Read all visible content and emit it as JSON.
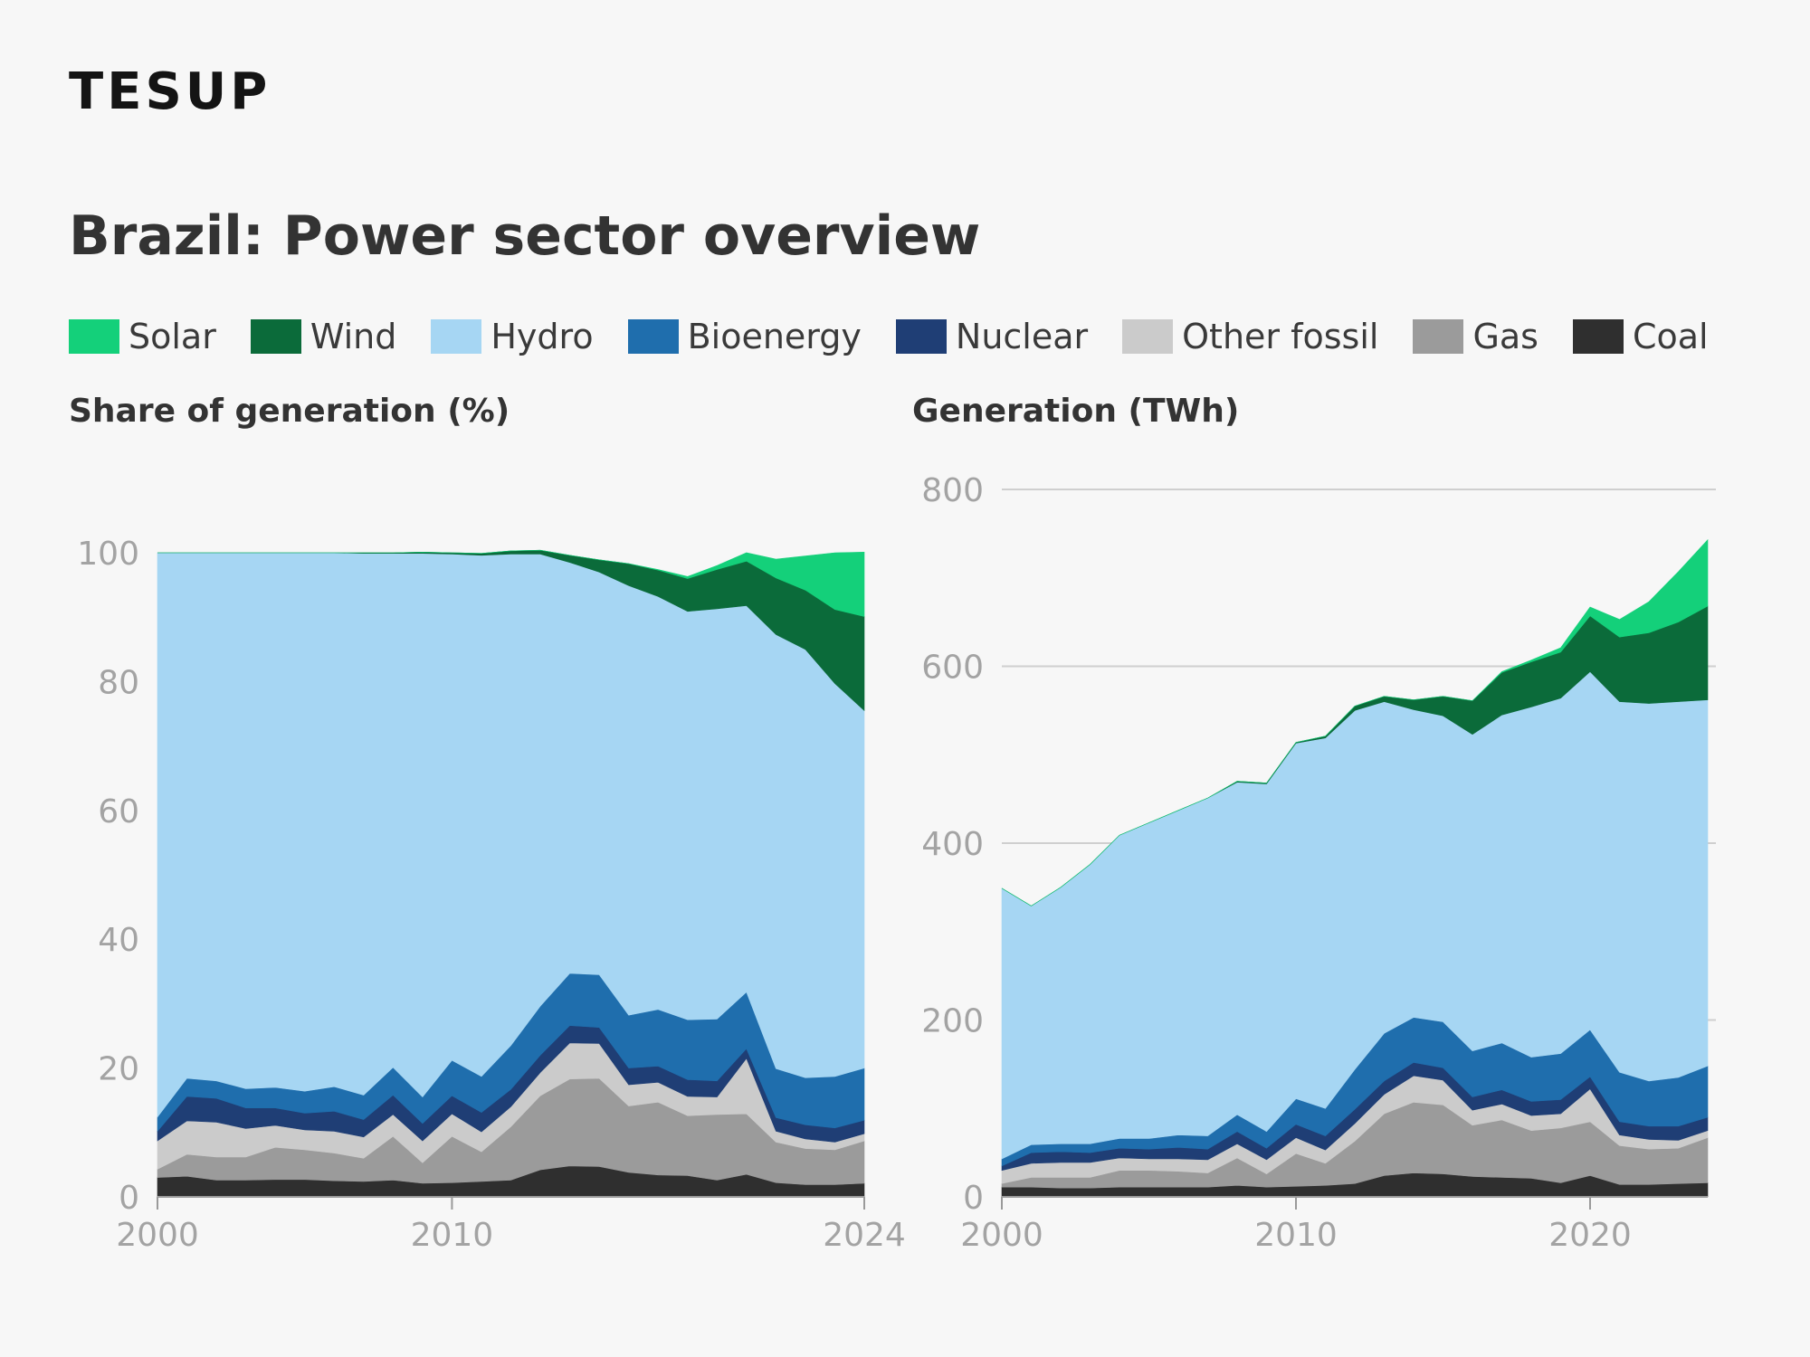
{
  "brand": {
    "logo_text": "TESUP"
  },
  "title": "Brazil: Power sector overview",
  "colors": {
    "Solar": "#14d07a",
    "Wind": "#0b6b3a",
    "Hydro": "#a6d6f3",
    "Bioenergy": "#1f6ead",
    "Nuclear": "#1f3e75",
    "Other fossil": "#cbcbcb",
    "Gas": "#9b9b9b",
    "Coal": "#2f2f2f"
  },
  "legend": [
    "Solar",
    "Wind",
    "Hydro",
    "Bioenergy",
    "Nuclear",
    "Other fossil",
    "Gas",
    "Coal"
  ],
  "chart_data": [
    {
      "type": "area",
      "stacked": true,
      "title": "Share of generation (%)",
      "xlabel": "",
      "ylabel": "",
      "xlim": [
        2000,
        2024
      ],
      "ylim": [
        0,
        100
      ],
      "yticks": [
        0,
        20,
        40,
        60,
        80,
        100
      ],
      "xticks": [
        2000,
        2010,
        2024
      ],
      "grid": false,
      "x": [
        2000,
        2001,
        2002,
        2003,
        2004,
        2005,
        2006,
        2007,
        2008,
        2009,
        2010,
        2011,
        2012,
        2013,
        2014,
        2015,
        2016,
        2017,
        2018,
        2019,
        2020,
        2021,
        2022,
        2023,
        2024
      ],
      "series": [
        {
          "name": "Coal",
          "values": [
            3,
            3.2,
            2.6,
            2.6,
            2.7,
            2.7,
            2.5,
            2.4,
            2.6,
            2.1,
            2.2,
            2.4,
            2.6,
            4.2,
            4.8,
            4.7,
            3.8,
            3.4,
            3.3,
            2.6,
            3.5,
            2.2,
            1.9,
            1.9,
            2.1
          ]
        },
        {
          "name": "Gas",
          "values": [
            1.3,
            3.4,
            3.6,
            3.6,
            5,
            4.6,
            4.3,
            3.6,
            6.8,
            3.2,
            7.2,
            4.6,
            8.3,
            11.5,
            13.5,
            13.7,
            10.3,
            11.3,
            9.3,
            10.2,
            9.4,
            6.3,
            5.6,
            5.4,
            6.6
          ]
        },
        {
          "name": "Other fossil",
          "values": [
            4.4,
            5.2,
            5.4,
            4.4,
            3.4,
            3.1,
            3.4,
            3.3,
            3.4,
            3.4,
            3.5,
            3.1,
            3.1,
            3.6,
            5.6,
            5.4,
            3.3,
            3.1,
            3,
            2.7,
            8.6,
            1.7,
            1.5,
            1.2,
            1.1
          ]
        },
        {
          "name": "Nuclear",
          "values": [
            1.5,
            3.8,
            3.7,
            3.2,
            2.7,
            2.6,
            3.1,
            2.7,
            3,
            2.7,
            2.8,
            3,
            2.7,
            2.7,
            2.7,
            2.5,
            2.6,
            2.5,
            2.6,
            2.5,
            1.5,
            2.1,
            2.2,
            2.2,
            2.1
          ]
        },
        {
          "name": "Bioenergy",
          "values": [
            2.2,
            2.8,
            2.7,
            3,
            3.2,
            3.4,
            3.8,
            3.8,
            4.3,
            4.1,
            5.5,
            5.6,
            6.8,
            7.6,
            8.1,
            8.2,
            8.2,
            8.8,
            9.3,
            9.6,
            8.8,
            7.6,
            7.3,
            8,
            8.1
          ]
        },
        {
          "name": "Hydro",
          "values": [
            87.6,
            81.6,
            82,
            83.2,
            83,
            83.6,
            82.9,
            84.1,
            79.8,
            84.4,
            78.6,
            80.9,
            76.3,
            70.2,
            63.8,
            62.5,
            66.7,
            64.1,
            63.4,
            63.7,
            60,
            67.4,
            66.5,
            61,
            55.5
          ]
        },
        {
          "name": "Wind",
          "values": [
            0,
            0,
            0,
            0,
            0,
            0,
            0,
            0.1,
            0.1,
            0.2,
            0.2,
            0.3,
            0.5,
            0.6,
            1.1,
            1.9,
            3.4,
            4.1,
            5.1,
            6.1,
            6.9,
            8.8,
            9.2,
            11.5,
            14.6
          ]
        },
        {
          "name": "Solar",
          "values": [
            0,
            0,
            0,
            0,
            0,
            0,
            0,
            0,
            0,
            0,
            0,
            0,
            0,
            0,
            0,
            0,
            0,
            0.1,
            0.3,
            0.6,
            1.3,
            2.9,
            5.3,
            8.8,
            10
          ]
        }
      ]
    },
    {
      "type": "area",
      "stacked": true,
      "title": "Generation (TWh)",
      "xlabel": "",
      "ylabel": "",
      "xlim": [
        2000,
        2024
      ],
      "ylim": [
        0,
        800
      ],
      "yticks": [
        0,
        200,
        400,
        600,
        800
      ],
      "xticks": [
        2000,
        2010,
        2020
      ],
      "grid": true,
      "x": [
        2000,
        2001,
        2002,
        2003,
        2004,
        2005,
        2006,
        2007,
        2008,
        2009,
        2010,
        2011,
        2012,
        2013,
        2014,
        2015,
        2016,
        2017,
        2018,
        2019,
        2020,
        2021,
        2022,
        2023,
        2024
      ],
      "series": [
        {
          "name": "Coal",
          "values": [
            11,
            11,
            10,
            10,
            11,
            11,
            11,
            11,
            13,
            11,
            12,
            13,
            15,
            24,
            27,
            26,
            23,
            22,
            21,
            16,
            24,
            14,
            14,
            15,
            16
          ]
        },
        {
          "name": "Gas",
          "values": [
            4,
            11,
            12,
            12,
            19,
            19,
            18,
            16,
            31,
            15,
            37,
            25,
            48,
            70,
            80,
            78,
            58,
            65,
            54,
            62,
            61,
            44,
            40,
            40,
            51
          ]
        },
        {
          "name": "Other fossil",
          "values": [
            15,
            16,
            17,
            17,
            14,
            13,
            14,
            15,
            16,
            16,
            18,
            15,
            20,
            22,
            30,
            28,
            17,
            18,
            17,
            16,
            37,
            12,
            11,
            9,
            8
          ]
        },
        {
          "name": "Nuclear",
          "values": [
            5,
            12,
            12,
            11,
            11,
            11,
            13,
            12,
            14,
            13,
            15,
            16,
            16,
            15,
            15,
            14,
            15,
            16,
            16,
            16,
            14,
            15,
            15,
            16,
            15
          ]
        },
        {
          "name": "Bioenergy",
          "values": [
            8,
            9,
            9,
            10,
            11,
            12,
            14,
            15,
            19,
            19,
            29,
            31,
            45,
            54,
            51,
            52,
            52,
            53,
            50,
            52,
            53,
            56,
            51,
            55,
            58
          ]
        },
        {
          "name": "Hydro",
          "values": [
            306,
            270,
            290,
            316,
            343,
            357,
            367,
            382,
            376,
            393,
            402,
            419,
            406,
            375,
            348,
            346,
            358,
            371,
            396,
            402,
            405,
            419,
            427,
            425,
            414
          ]
        },
        {
          "name": "Wind",
          "values": [
            0,
            0,
            0,
            0,
            0,
            0,
            0,
            0,
            1,
            1,
            1,
            2,
            5,
            6,
            11,
            22,
            38,
            48,
            51,
            52,
            63,
            73,
            80,
            90,
            106
          ]
        },
        {
          "name": "Solar",
          "values": [
            0,
            0,
            0,
            0,
            0,
            0,
            0,
            0,
            0,
            0,
            0,
            0,
            0,
            0,
            0,
            0,
            0,
            1,
            2,
            5,
            10,
            20,
            35,
            57,
            75
          ]
        }
      ]
    }
  ]
}
